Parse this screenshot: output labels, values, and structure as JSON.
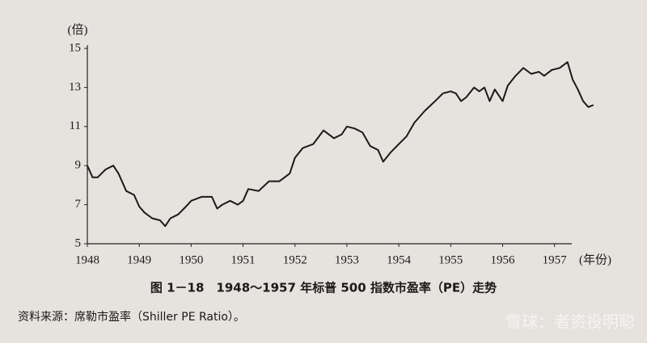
{
  "chart_data": {
    "type": "line",
    "y_label": "(倍)",
    "x_label": "(年份)",
    "caption": "图 1－18　1948～1957 年标普 500 指数市盈率（PE）走势",
    "source": "资料来源：席勒市盈率（Shiller PE Ratio）。",
    "watermark": "雪球：者资投明聪",
    "color": "#1a1a1a",
    "x": [
      1948.0,
      1948.1,
      1948.2,
      1948.35,
      1948.5,
      1948.6,
      1948.75,
      1948.9,
      1949.0,
      1949.1,
      1949.25,
      1949.4,
      1949.5,
      1949.6,
      1949.75,
      1949.9,
      1950.0,
      1950.2,
      1950.4,
      1950.5,
      1950.6,
      1950.75,
      1950.9,
      1951.0,
      1951.1,
      1951.3,
      1951.5,
      1951.7,
      1951.9,
      1952.0,
      1952.15,
      1952.35,
      1952.55,
      1952.75,
      1952.9,
      1953.0,
      1953.15,
      1953.3,
      1953.45,
      1953.6,
      1953.7,
      1953.85,
      1954.0,
      1954.15,
      1954.3,
      1954.5,
      1954.7,
      1954.85,
      1955.0,
      1955.1,
      1955.2,
      1955.3,
      1955.45,
      1955.55,
      1955.65,
      1955.75,
      1955.85,
      1956.0,
      1956.1,
      1956.25,
      1956.4,
      1956.55,
      1956.7,
      1956.8,
      1956.95,
      1957.1,
      1957.25,
      1957.35,
      1957.45,
      1957.55,
      1957.65,
      1957.75
    ],
    "values": [
      9.0,
      8.4,
      8.4,
      8.8,
      9.0,
      8.6,
      7.7,
      7.5,
      6.9,
      6.6,
      6.3,
      6.2,
      5.9,
      6.3,
      6.5,
      6.9,
      7.2,
      7.4,
      7.4,
      6.8,
      7.0,
      7.2,
      7.0,
      7.2,
      7.8,
      7.7,
      8.2,
      8.2,
      8.6,
      9.4,
      9.9,
      10.1,
      10.8,
      10.4,
      10.6,
      11.0,
      10.9,
      10.7,
      10.0,
      9.8,
      9.2,
      9.7,
      10.1,
      10.5,
      11.2,
      11.8,
      12.3,
      12.7,
      12.8,
      12.7,
      12.3,
      12.5,
      13.0,
      12.8,
      13.0,
      12.3,
      12.9,
      12.3,
      13.1,
      13.6,
      14.0,
      13.7,
      13.8,
      13.6,
      13.9,
      14.0,
      14.3,
      13.4,
      12.9,
      12.3,
      12.0,
      12.1
    ],
    "xlim": [
      1948,
      1957.8
    ],
    "ylim": [
      5,
      15
    ],
    "xticks": [
      1948,
      1949,
      1950,
      1951,
      1952,
      1953,
      1954,
      1955,
      1956,
      1957
    ],
    "yticks": [
      5,
      7,
      9,
      11,
      13,
      15
    ]
  }
}
